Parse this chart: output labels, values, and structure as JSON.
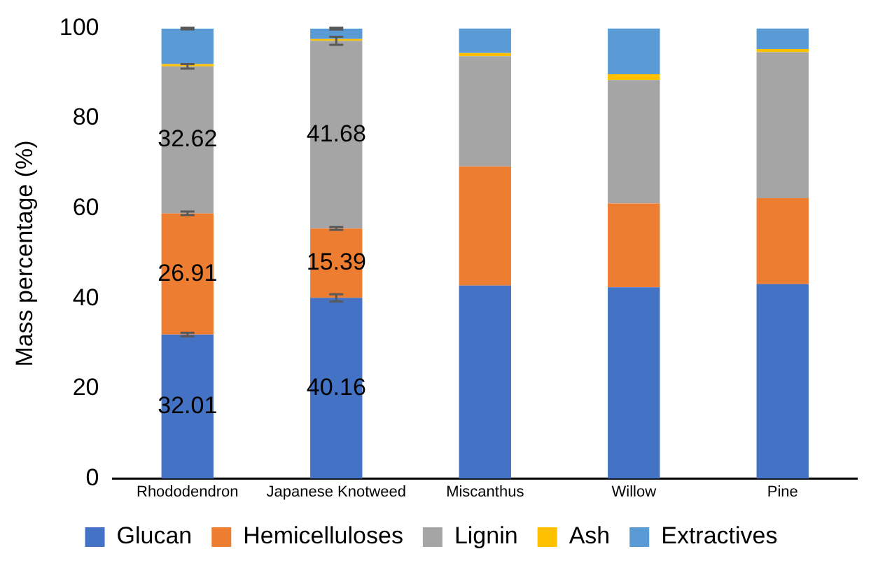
{
  "chart_data": {
    "type": "bar",
    "stacked": true,
    "ylabel": "Mass percentage (%)",
    "categories": [
      "Rhododendron",
      "Japanese Knotweed",
      "Miscanthus",
      "Willow",
      "Pine"
    ],
    "series": [
      {
        "name": "Glucan",
        "color": "#4472c4",
        "values": [
          32.01,
          40.16,
          42.9,
          42.5,
          43.2
        ],
        "errors": [
          0.4,
          0.8,
          null,
          null,
          null
        ],
        "value_labels": [
          "32.01",
          "40.16",
          null,
          null,
          null
        ]
      },
      {
        "name": "Hemicelluloses",
        "color": "#ed7d31",
        "values": [
          26.91,
          15.39,
          26.4,
          18.6,
          19.1
        ],
        "errors": [
          0.4,
          0.3,
          null,
          null,
          null
        ],
        "value_labels": [
          "26.91",
          "15.39",
          null,
          null,
          null
        ]
      },
      {
        "name": "Lignin",
        "color": "#a5a5a5",
        "values": [
          32.62,
          41.68,
          24.5,
          27.4,
          32.4
        ],
        "errors": [
          0.5,
          0.9,
          null,
          null,
          null
        ],
        "value_labels": [
          "32.62",
          "41.68",
          null,
          null,
          null
        ]
      },
      {
        "name": "Ash",
        "color": "#ffc000",
        "values": [
          0.5,
          0.4,
          0.7,
          1.3,
          0.7
        ]
      },
      {
        "name": "Extractives",
        "color": "#5b9bd5",
        "values": [
          7.9,
          2.3,
          5.5,
          10.2,
          4.6
        ],
        "errors": [
          0.2,
          0.2,
          null,
          null,
          null
        ]
      }
    ],
    "ylim": [
      0,
      100
    ],
    "yticks": [
      0,
      20,
      40,
      60,
      80,
      100
    ],
    "grid": false,
    "legend": "bottom"
  }
}
